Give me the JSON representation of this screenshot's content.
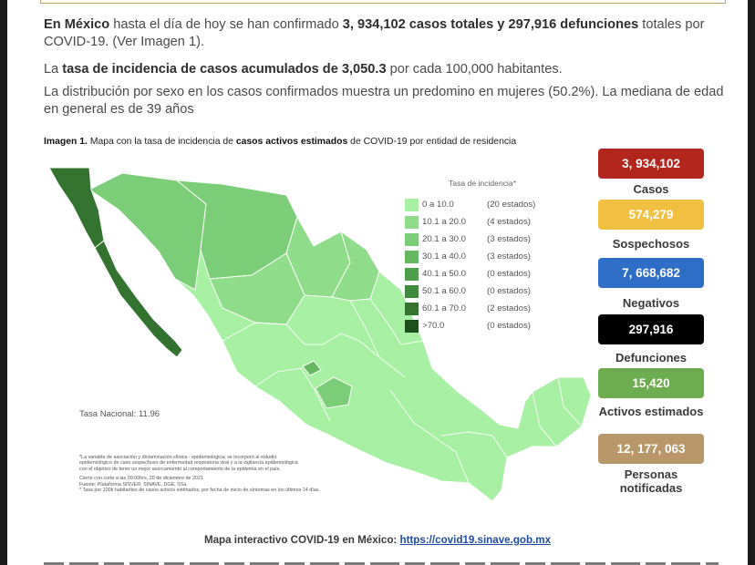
{
  "summary": {
    "p1_lead": "En México",
    "p1_a": " hasta el día de hoy se han confirmado ",
    "p1_cases": "3, 934,102 casos totales y 297,916 defunciones",
    "p1_b": " totales por COVID-19. (Ver Imagen 1).",
    "p2_a": "La ",
    "p2_rate": "tasa de incidencia de casos acumulados de 3,050.3",
    "p2_b": " por cada 100,000 habitantes.",
    "p3": "La distribución por sexo en los casos confirmados muestra un predomino en mujeres (50.2%). La mediana de edad en general es de 39 años"
  },
  "map": {
    "caption_label": "Imagen 1.",
    "caption_a": " Mapa con la tasa de incidencia de ",
    "caption_bold": "casos activos estimados",
    "caption_b": " de COVID-19 por entidad de residencia",
    "legend_title": "Tasa de incidencia*",
    "legend": [
      {
        "range": "0   a  10.0",
        "count": "(20 estados)",
        "color": "#a8f0a3"
      },
      {
        "range": "10.1 a  20.0",
        "count": "(4 estados)",
        "color": "#8fdc8a"
      },
      {
        "range": "20.1 a  30.0",
        "count": "(3 estados)",
        "color": "#7ccd78"
      },
      {
        "range": "30.1 a  40.0",
        "count": "(3 estados)",
        "color": "#64b860"
      },
      {
        "range": "40.1 a  50.0",
        "count": "(0 estados)",
        "color": "#4d9f4a"
      },
      {
        "range": "50.1 a  60.0",
        "count": "(0 estados)",
        "color": "#3f8a3d"
      },
      {
        "range": "60.1 a  70.0",
        "count": "(2 estados)",
        "color": "#33722f"
      },
      {
        "range": ">70.0",
        "count": "(0 estados)",
        "color": "#1f4f1d"
      }
    ],
    "tasa_nacional": "Tasa Nacional: 11.96",
    "footnotes": [
      "*La variable de asociación y dictaminación clínica - epidemiológica, se incorporó al estudio",
      "epidemiológico de caso sospechoso de enfermedad respiratoria viral y a la vigilancia epidemiológica",
      "con el objetivo de tener un mejor acercamiento al comportamiento de la epidemia en el país.",
      "Cierre con corte a las 09:00hrs, 20 de diciembre de 2021",
      "Fuente: Plataforma SISVER, SINAVE, DGE, SSa.",
      "* Tasa por 100k habitantes de casos activos estimados, por fecha de inicio de síntomas en los últimos 14 días."
    ]
  },
  "stats": [
    {
      "value": "3, 934,102",
      "label": "Casos",
      "color": "#b3261e"
    },
    {
      "value": "574,279",
      "label": "Sospechosos",
      "color": "#f2c040"
    },
    {
      "value": "7, 668,682",
      "label": "Negativos",
      "color": "#2f6ec7"
    },
    {
      "value": "297,916",
      "label": "Defunciones",
      "color": "#000000"
    },
    {
      "value": "15,420",
      "label": "Activos estimados",
      "color": "#6dac4f"
    },
    {
      "value": "12, 177, 063",
      "label": "Personas notificadas",
      "color": "#b8976a"
    }
  ],
  "link": {
    "prefix": "Mapa interactivo COVID-19 en México: ",
    "url_text": "https://covid19.sinave.gob.mx"
  },
  "colors": {
    "rule": "#c2a370",
    "light_green": "#a8f0a3",
    "dark_green": "#33722f"
  }
}
